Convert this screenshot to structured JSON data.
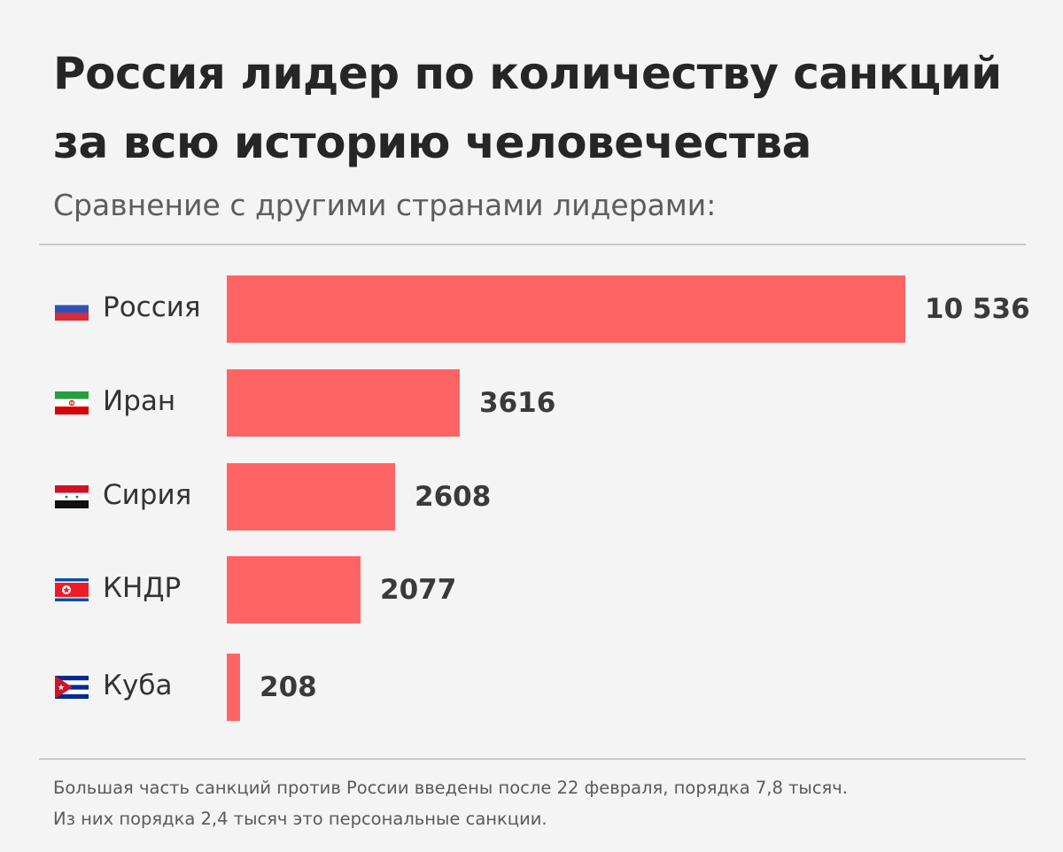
{
  "header": {
    "title_line1": "Россия лидер по количеству санкций",
    "title_line2": "за всю историю человечества",
    "subtitle": "Сравнение с другими странами лидерами:"
  },
  "colors": {
    "background": "#f4f4f4",
    "bar": "#ff6464",
    "title": "#262626",
    "subtitle": "#5d5d5d",
    "value": "#3a3a3a",
    "divider": "#cbcbcb"
  },
  "rows": [
    {
      "country": "Россия",
      "flag_icon": "russia-flag-icon",
      "value": 10536,
      "value_label": "10 536"
    },
    {
      "country": "Иран",
      "flag_icon": "iran-flag-icon",
      "value": 3616,
      "value_label": "3616"
    },
    {
      "country": "Сирия",
      "flag_icon": "syria-flag-icon",
      "value": 2608,
      "value_label": "2608"
    },
    {
      "country": "КНДР",
      "flag_icon": "north-korea-flag-icon",
      "value": 2077,
      "value_label": "2077"
    },
    {
      "country": "Куба",
      "flag_icon": "cuba-flag-icon",
      "value": 208,
      "value_label": "208"
    }
  ],
  "footnote": {
    "line1": "Большая часть санкций против России введены после 22 февраля, порядка 7,8 тысяч.",
    "line2": "Из них порядка 2,4 тысяч это персональные санкции."
  },
  "chart_data": {
    "type": "bar",
    "orientation": "horizontal",
    "title": "Россия лидер по количеству санкций за всю историю человечества",
    "subtitle": "Сравнение с другими странами лидерами:",
    "categories": [
      "Россия",
      "Иран",
      "Сирия",
      "КНДР",
      "Куба"
    ],
    "values": [
      10536,
      3616,
      2608,
      2077,
      208
    ],
    "value_labels": [
      "10 536",
      "3616",
      "2608",
      "2077",
      "208"
    ],
    "xlabel": "",
    "ylabel": "",
    "grid": false,
    "legend": null,
    "axis_visible": false,
    "annotations": [
      "Большая часть санкций против России введены после 22 февраля, порядка 7,8 тысяч.",
      "Из них порядка 2,4 тысяч это персональные санкции."
    ]
  }
}
